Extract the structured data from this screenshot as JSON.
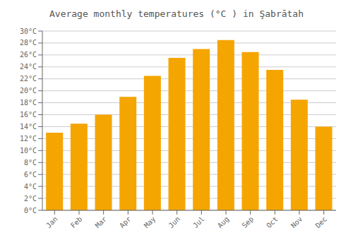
{
  "chart_data": {
    "type": "bar",
    "title": "Average monthly temperatures (°C ) in Şabrātah",
    "categories": [
      "Jan",
      "Feb",
      "Mar",
      "Apr",
      "May",
      "Jun",
      "Jul",
      "Aug",
      "Sep",
      "Oct",
      "Nov",
      "Dec"
    ],
    "values": [
      13,
      14.5,
      16,
      19,
      22.5,
      25.5,
      27,
      28.5,
      26.5,
      23.5,
      18.5,
      14
    ],
    "color": "#F5A500",
    "ylim": [
      0,
      30
    ],
    "yticks": [
      {
        "value": 0,
        "label": "0°C"
      },
      {
        "value": 2,
        "label": "2°C"
      },
      {
        "value": 4,
        "label": "4°C"
      },
      {
        "value": 6,
        "label": "6°C"
      },
      {
        "value": 8,
        "label": "8°C"
      },
      {
        "value": 10,
        "label": "10°C"
      },
      {
        "value": 12,
        "label": "12°C"
      },
      {
        "value": 14,
        "label": "14°C"
      },
      {
        "value": 16,
        "label": "16°C"
      },
      {
        "value": 18,
        "label": "18°C"
      },
      {
        "value": 20,
        "label": "20°C"
      },
      {
        "value": 22,
        "label": "22°C"
      },
      {
        "value": 24,
        "label": "24°C"
      },
      {
        "value": 26,
        "label": "26°C"
      },
      {
        "value": 28,
        "label": "28°C"
      },
      {
        "value": 30,
        "label": "30°C"
      }
    ],
    "grid": true
  }
}
